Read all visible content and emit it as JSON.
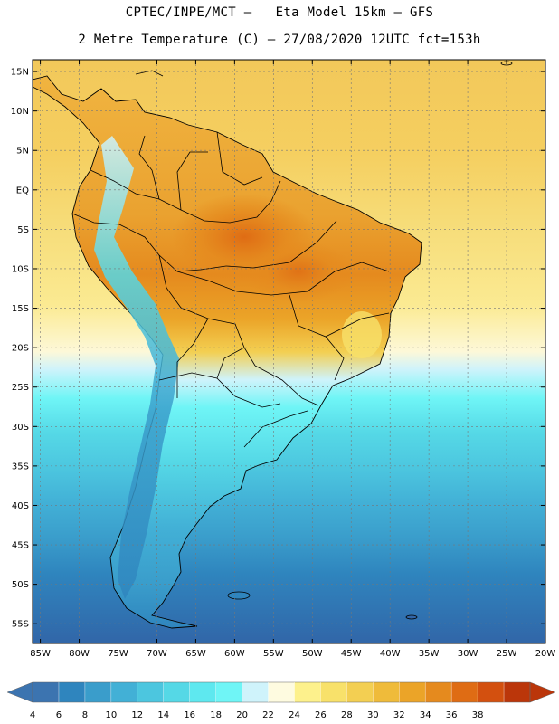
{
  "header": {
    "line1": "CPTEC/INPE/MCT –   Eta Model 15km – GFS",
    "line2": "2 Metre Temperature (C) – 27/08/2020 12UTC fct=153h"
  },
  "map": {
    "region": "South America",
    "lat_labels": [
      "15N",
      "10N",
      "5N",
      "EQ",
      "5S",
      "10S",
      "15S",
      "20S",
      "25S",
      "30S",
      "35S",
      "40S",
      "45S",
      "50S",
      "55S"
    ],
    "lat_values": [
      15,
      10,
      5,
      0,
      -5,
      -10,
      -15,
      -20,
      -25,
      -30,
      -35,
      -40,
      -45,
      -50,
      -55
    ],
    "lon_labels": [
      "85W",
      "80W",
      "75W",
      "70W",
      "65W",
      "60W",
      "55W",
      "50W",
      "45W",
      "40W",
      "35W",
      "30W",
      "25W",
      "20W"
    ],
    "lon_values": [
      -85,
      -80,
      -75,
      -70,
      -65,
      -60,
      -55,
      -50,
      -45,
      -40,
      -35,
      -30,
      -25,
      -20
    ],
    "extent": {
      "lon_min": -86,
      "lon_max": -20,
      "lat_min": -57.5,
      "lat_max": 16.5
    }
  },
  "colorbar": {
    "labels": [
      "4",
      "6",
      "8",
      "10",
      "12",
      "14",
      "16",
      "18",
      "20",
      "22",
      "24",
      "26",
      "28",
      "30",
      "32",
      "34",
      "36",
      "38"
    ],
    "colors": [
      "#3c74b0",
      "#2f85be",
      "#3a9dcb",
      "#42b0d6",
      "#4cc6df",
      "#55d8e6",
      "#5ee8ef",
      "#6ff5f6",
      "#cff3fb",
      "#fefbe0",
      "#fdf18c",
      "#f8e16a",
      "#f3cf52",
      "#efbb3a",
      "#eba428",
      "#e58a1e",
      "#df6c14",
      "#d3500f",
      "#bb360a"
    ],
    "low_color": "#3c74b0",
    "high_color": "#bb360a"
  }
}
